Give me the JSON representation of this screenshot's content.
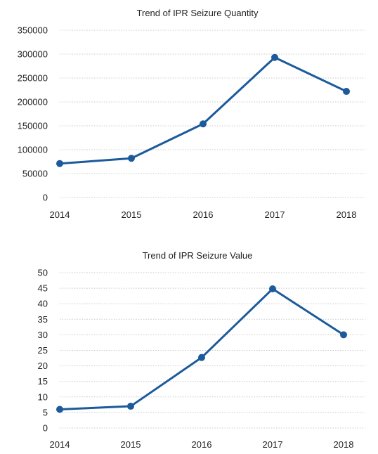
{
  "colors": {
    "series": "#1c5a9c",
    "grid": "#c9c9c9",
    "text": "#222222"
  },
  "chart_data": [
    {
      "type": "line",
      "title": "Trend of IPR Seizure Quantity",
      "xlabel": "",
      "ylabel": "",
      "categories": [
        "2014",
        "2015",
        "2016",
        "2017",
        "2018"
      ],
      "yticks": [
        "0",
        "50000",
        "100000",
        "150000",
        "200000",
        "250000",
        "300000",
        "350000"
      ],
      "ylim": [
        0,
        350000
      ],
      "grid": true,
      "legend": "none",
      "series": [
        {
          "values": [
            71000,
            82000,
            154000,
            293000,
            222000
          ]
        }
      ]
    },
    {
      "type": "line",
      "title": "Trend of IPR Seizure Value",
      "xlabel": "",
      "ylabel": "",
      "categories": [
        "2014",
        "2015",
        "2016",
        "2017",
        "2018"
      ],
      "yticks": [
        "0",
        "5",
        "10",
        "15",
        "20",
        "25",
        "30",
        "35",
        "40",
        "45",
        "50"
      ],
      "ylim": [
        0,
        50
      ],
      "grid": true,
      "legend": "none",
      "series": [
        {
          "values": [
            6,
            7,
            22.7,
            44.8,
            30
          ]
        }
      ]
    }
  ]
}
